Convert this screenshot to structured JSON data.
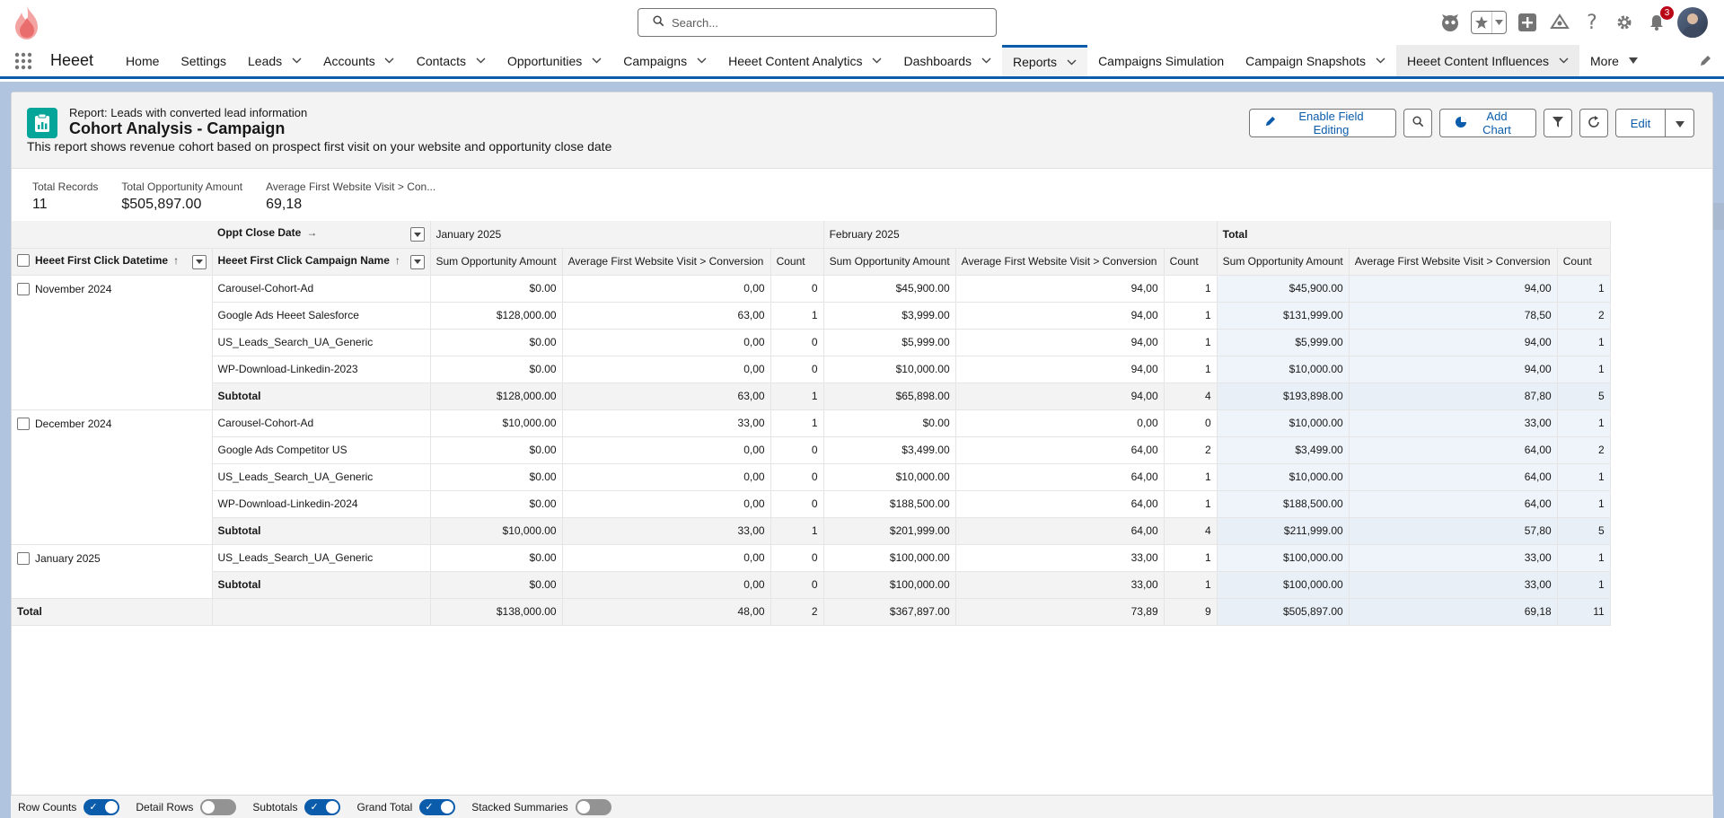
{
  "search": {
    "placeholder": "Search..."
  },
  "header": {
    "notification_count": "3"
  },
  "nav": {
    "app_name": "Heeet",
    "items": [
      {
        "label": "Home",
        "has_menu": false
      },
      {
        "label": "Settings",
        "has_menu": false
      },
      {
        "label": "Leads",
        "has_menu": true
      },
      {
        "label": "Accounts",
        "has_menu": true
      },
      {
        "label": "Contacts",
        "has_menu": true
      },
      {
        "label": "Opportunities",
        "has_menu": true
      },
      {
        "label": "Campaigns",
        "has_menu": true
      },
      {
        "label": "Heeet Content Analytics",
        "has_menu": true
      },
      {
        "label": "Dashboards",
        "has_menu": true
      },
      {
        "label": "Reports",
        "has_menu": true,
        "active": true
      },
      {
        "label": "Campaigns Simulation",
        "has_menu": false
      },
      {
        "label": "Campaign Snapshots",
        "has_menu": true
      },
      {
        "label": "Heeet Content Influences",
        "has_menu": true
      },
      {
        "label": "More",
        "has_menu": true
      }
    ]
  },
  "report": {
    "type_label": "Report: Leads with converted lead information",
    "title": "Cohort Analysis - Campaign",
    "description": "This report shows revenue cohort based on prospect first visit on your website and opportunity close date",
    "actions": {
      "enable_field_editing": "Enable Field Editing",
      "add_chart": "Add Chart",
      "edit": "Edit"
    }
  },
  "stats": [
    {
      "label": "Total Records",
      "value": "11"
    },
    {
      "label": "Total Opportunity Amount",
      "value": "$505,897.00"
    },
    {
      "label": "Average First Website Visit > Con...",
      "value": "69,18"
    }
  ],
  "table": {
    "col_group_header": "Oppt Close Date",
    "row_group_header_1": "Heeet First Click Datetime",
    "row_group_header_2": "Heeet First Click Campaign Name",
    "col_groups": [
      "January 2025",
      "February 2025",
      "Total"
    ],
    "measure_headers": [
      "Sum Opportunity Amount",
      "Average First Website Visit > Conversion",
      "Count"
    ],
    "subtotal_label": "Subtotal",
    "grand_total_label": "Total",
    "groups": [
      {
        "label": "November 2024",
        "rows": [
          {
            "campaign": "Carousel-Cohort-Ad",
            "cells": [
              "$0.00",
              "0,00",
              "0",
              "$45,900.00",
              "94,00",
              "1",
              "$45,900.00",
              "94,00",
              "1"
            ]
          },
          {
            "campaign": "Google Ads Heeet Salesforce",
            "cells": [
              "$128,000.00",
              "63,00",
              "1",
              "$3,999.00",
              "94,00",
              "1",
              "$131,999.00",
              "78,50",
              "2"
            ]
          },
          {
            "campaign": "US_Leads_Search_UA_Generic",
            "cells": [
              "$0.00",
              "0,00",
              "0",
              "$5,999.00",
              "94,00",
              "1",
              "$5,999.00",
              "94,00",
              "1"
            ]
          },
          {
            "campaign": "WP-Download-Linkedin-2023",
            "cells": [
              "$0.00",
              "0,00",
              "0",
              "$10,000.00",
              "94,00",
              "1",
              "$10,000.00",
              "94,00",
              "1"
            ]
          }
        ],
        "subtotal": [
          "$128,000.00",
          "63,00",
          "1",
          "$65,898.00",
          "94,00",
          "4",
          "$193,898.00",
          "87,80",
          "5"
        ]
      },
      {
        "label": "December 2024",
        "rows": [
          {
            "campaign": "Carousel-Cohort-Ad",
            "cells": [
              "$10,000.00",
              "33,00",
              "1",
              "$0.00",
              "0,00",
              "0",
              "$10,000.00",
              "33,00",
              "1"
            ]
          },
          {
            "campaign": "Google Ads Competitor US",
            "cells": [
              "$0.00",
              "0,00",
              "0",
              "$3,499.00",
              "64,00",
              "2",
              "$3,499.00",
              "64,00",
              "2"
            ]
          },
          {
            "campaign": "US_Leads_Search_UA_Generic",
            "cells": [
              "$0.00",
              "0,00",
              "0",
              "$10,000.00",
              "64,00",
              "1",
              "$10,000.00",
              "64,00",
              "1"
            ]
          },
          {
            "campaign": "WP-Download-Linkedin-2024",
            "cells": [
              "$0.00",
              "0,00",
              "0",
              "$188,500.00",
              "64,00",
              "1",
              "$188,500.00",
              "64,00",
              "1"
            ]
          }
        ],
        "subtotal": [
          "$10,000.00",
          "33,00",
          "1",
          "$201,999.00",
          "64,00",
          "4",
          "$211,999.00",
          "57,80",
          "5"
        ]
      },
      {
        "label": "January 2025",
        "rows": [
          {
            "campaign": "US_Leads_Search_UA_Generic",
            "cells": [
              "$0.00",
              "0,00",
              "0",
              "$100,000.00",
              "33,00",
              "1",
              "$100,000.00",
              "33,00",
              "1"
            ]
          }
        ],
        "subtotal": [
          "$0.00",
          "0,00",
          "0",
          "$100,000.00",
          "33,00",
          "1",
          "$100,000.00",
          "33,00",
          "1"
        ]
      }
    ],
    "grand_total": [
      "$138,000.00",
      "48,00",
      "2",
      "$367,897.00",
      "73,89",
      "9",
      "$505,897.00",
      "69,18",
      "11"
    ]
  },
  "footer": {
    "toggles": [
      {
        "label": "Row Counts",
        "on": true
      },
      {
        "label": "Detail Rows",
        "on": false
      },
      {
        "label": "Subtotals",
        "on": true
      },
      {
        "label": "Grand Total",
        "on": true
      },
      {
        "label": "Stacked Summaries",
        "on": false
      }
    ]
  },
  "colors": {
    "brand": "#0b5cab",
    "report_icon": "#06a59a",
    "page_band": "#b0c4df",
    "logo": "#f26b6b"
  }
}
